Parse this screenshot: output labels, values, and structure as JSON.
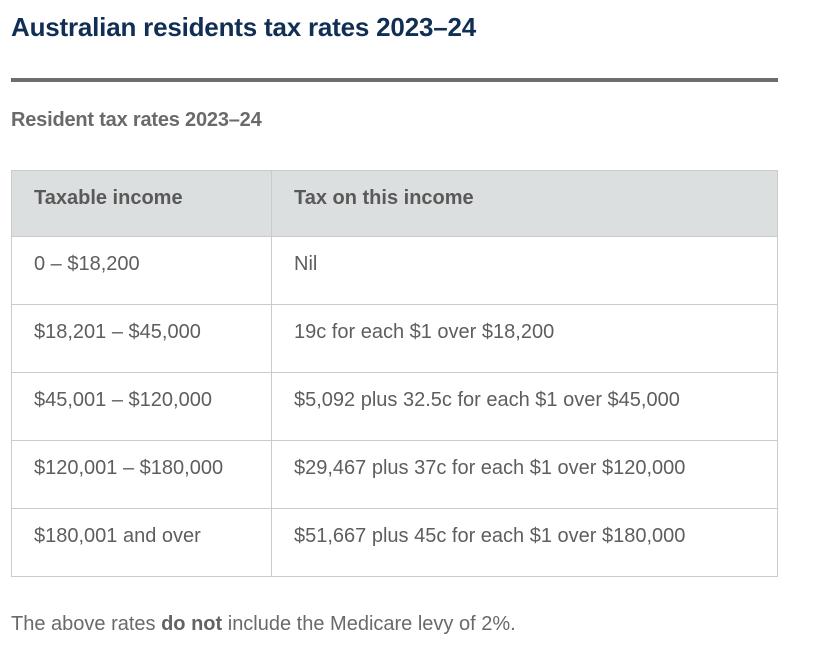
{
  "page": {
    "title": "Australian residents tax rates 2023–24",
    "section_heading": "Resident tax rates 2023–24",
    "footnote": {
      "prefix": "The above rates ",
      "bold": "do not",
      "suffix": " include the Medicare levy of 2%."
    }
  },
  "table": {
    "headers": [
      "Taxable income",
      "Tax on this income"
    ],
    "rows": [
      [
        "0 – $18,200",
        "Nil"
      ],
      [
        "$18,201 – $45,000",
        "19c for each $1 over $18,200"
      ],
      [
        "$45,001 – $120,000",
        "$5,092 plus 32.5c for each $1 over $45,000"
      ],
      [
        "$120,001 – $180,000",
        "$29,467 plus 37c for each $1 over $120,000"
      ],
      [
        "$180,001 and over",
        "$51,667 plus 45c for each $1 over $180,000"
      ]
    ]
  },
  "colors": {
    "title_navy": "#112f55",
    "heading_gray": "#6a6a6a",
    "body_gray": "#5e5e5e",
    "header_bg": "#dcdfdf",
    "border": "#cbcbcb",
    "rule": "#6d6d6d"
  }
}
